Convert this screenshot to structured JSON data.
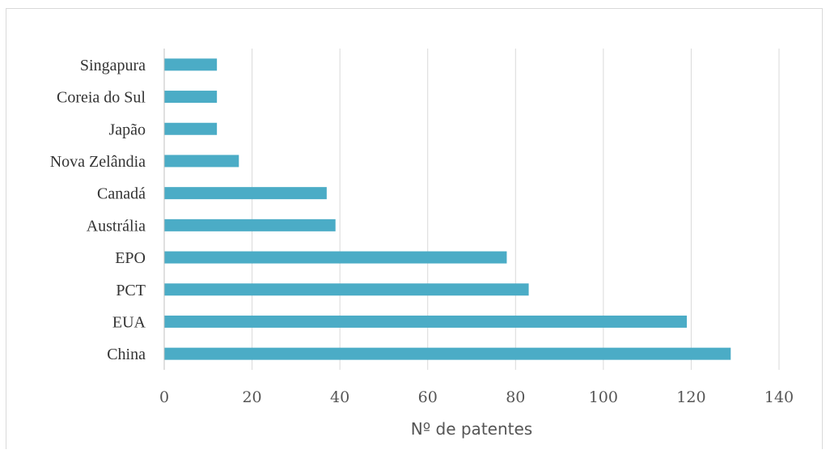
{
  "chart_data": {
    "type": "bar",
    "orientation": "horizontal",
    "categories": [
      "China",
      "EUA",
      "PCT",
      "EPO",
      "Austrália",
      "Canadá",
      "Nova Zelândia",
      "Japão",
      "Coreia do Sul",
      "Singapura"
    ],
    "values": [
      129,
      119,
      83,
      78,
      39,
      37,
      17,
      12,
      12,
      12
    ],
    "xlabel": "Nº de patentes",
    "ylabel": "",
    "xlim": [
      0,
      140
    ],
    "xticks": [
      "0",
      "20",
      "40",
      "60",
      "80",
      "100",
      "120",
      "140"
    ],
    "grid": true,
    "legend": "none",
    "colors": {
      "bar": "#4bacc6",
      "grid": "#d9d9d9",
      "axis": "#bfbfbf"
    }
  }
}
